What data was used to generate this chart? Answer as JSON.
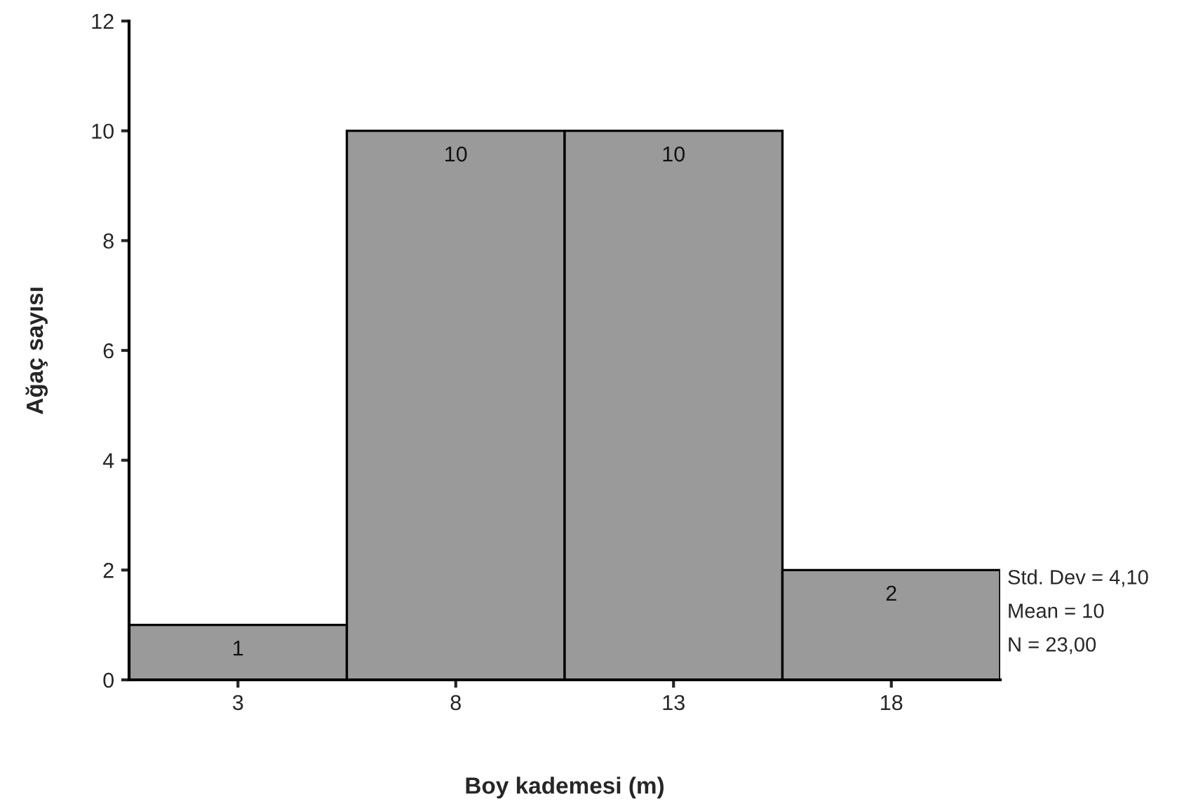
{
  "chart_data": {
    "type": "histogram",
    "xlabel": "Boy kademesi (m)",
    "ylabel": "Ağaç sayısı",
    "bins": [
      0.5,
      5.5,
      10.5,
      15.5,
      20.5
    ],
    "values": [
      1,
      10,
      10,
      2
    ],
    "color": "#9a9a9a",
    "xlim": [
      0.5,
      20.5
    ],
    "xticks": [
      3,
      8,
      13,
      18
    ],
    "ylim": [
      0,
      12
    ],
    "yticks": [
      0,
      2,
      4,
      6,
      8,
      10,
      12
    ],
    "data_labels": true,
    "grid": false,
    "legend": false,
    "annotations": [
      "Std. Dev = 4,10",
      "Mean = 10",
      "N = 23,00"
    ]
  }
}
